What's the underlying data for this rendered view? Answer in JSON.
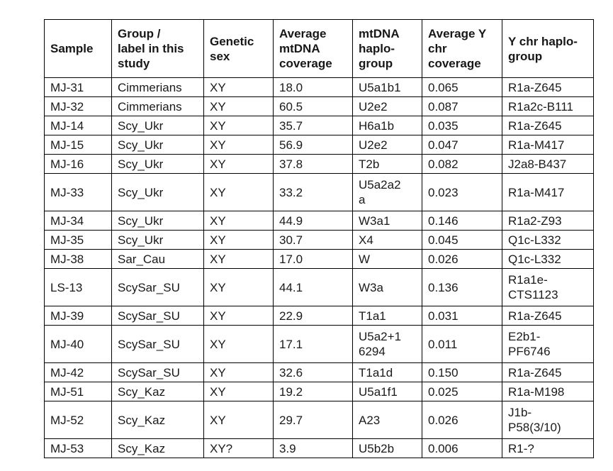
{
  "table": {
    "columns": [
      {
        "key": "sample",
        "label": "Sample"
      },
      {
        "key": "group-label",
        "label": "Group /\nlabel in this\nstudy"
      },
      {
        "key": "genetic-sex",
        "label": "Genetic\nsex"
      },
      {
        "key": "avg-mtdna-coverage",
        "label": "Average\nmtDNA\ncoverage"
      },
      {
        "key": "mtdna-haplogroup",
        "label": "mtDNA\nhaplo-\ngroup"
      },
      {
        "key": "avg-ychr-coverage",
        "label": "Average Y\nchr\ncoverage"
      },
      {
        "key": "ychr-haplogroup",
        "label": "Y chr haplo-\ngroup"
      }
    ],
    "rows": [
      {
        "cells": [
          "MJ-31",
          "Cimmerians",
          "XY",
          "18.0",
          "U5a1b1",
          "0.065",
          "R1a-Z645"
        ]
      },
      {
        "cells": [
          "MJ-32",
          "Cimmerians",
          "XY",
          "60.5",
          "U2e2",
          "0.087",
          "R1a2c-B111"
        ]
      },
      {
        "cells": [
          "MJ-14",
          "Scy_Ukr",
          "XY",
          "35.7",
          "H6a1b",
          "0.035",
          "R1a-Z645"
        ]
      },
      {
        "cells": [
          "MJ-15",
          "Scy_Ukr",
          "XY",
          "56.9",
          "U2e2",
          "0.047",
          "R1a-M417"
        ]
      },
      {
        "cells": [
          "MJ-16",
          "Scy_Ukr",
          "XY",
          "37.8",
          "T2b",
          "0.082",
          "J2a8-B437"
        ]
      },
      {
        "cells": [
          "MJ-33",
          "Scy_Ukr",
          "XY",
          "33.2",
          "U5a2a2\na",
          "0.023",
          "R1a-M417"
        ]
      },
      {
        "cells": [
          "MJ-34",
          "Scy_Ukr",
          "XY",
          "44.9",
          "W3a1",
          "0.146",
          "R1a2-Z93"
        ]
      },
      {
        "cells": [
          "MJ-35",
          "Scy_Ukr",
          "XY",
          "30.7",
          "X4",
          "0.045",
          "Q1c-L332"
        ]
      },
      {
        "cells": [
          "MJ-38",
          "Sar_Cau",
          "XY",
          "17.0",
          "W",
          "0.026",
          "Q1c-L332"
        ]
      },
      {
        "cells": [
          "LS-13",
          "ScySar_SU",
          "XY",
          "44.1",
          "W3a",
          "0.136",
          "R1a1e-\nCTS1123"
        ]
      },
      {
        "cells": [
          "MJ-39",
          "ScySar_SU",
          "XY",
          "22.9",
          "T1a1",
          "0.031",
          "R1a-Z645"
        ]
      },
      {
        "cells": [
          "MJ-40",
          "ScySar_SU",
          "XY",
          "17.1",
          "U5a2+1\n6294",
          "0.011",
          "E2b1-\nPF6746"
        ]
      },
      {
        "cells": [
          "MJ-42",
          "ScySar_SU",
          "XY",
          "32.6",
          "T1a1d",
          "0.150",
          "R1a-Z645"
        ]
      },
      {
        "cells": [
          "MJ-51",
          "Scy_Kaz",
          "XY",
          "19.2",
          "U5a1f1",
          "0.025",
          "R1a-M198"
        ]
      },
      {
        "cells": [
          "MJ-52",
          "Scy_Kaz",
          "XY",
          "29.7",
          "A23",
          "0.026",
          "J1b-\nP58(3/10)"
        ]
      },
      {
        "cells": [
          "MJ-53",
          "Scy_Kaz",
          "XY?",
          "3.9",
          "U5b2b",
          "0.006",
          "R1-?"
        ]
      }
    ],
    "colors": {
      "border": "#000000",
      "text": "#1a1a1a",
      "background": "#ffffff"
    }
  }
}
